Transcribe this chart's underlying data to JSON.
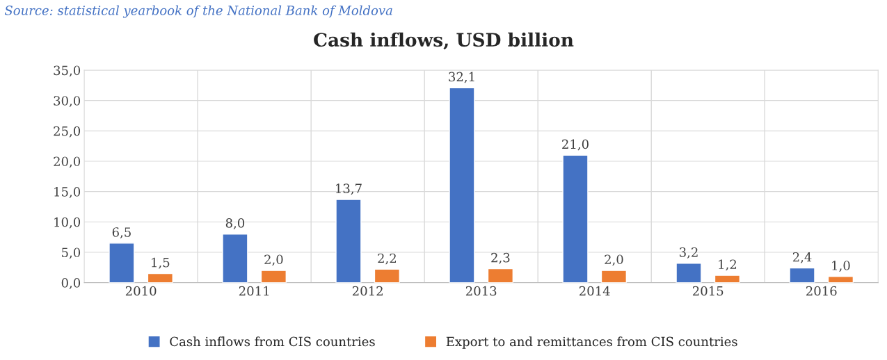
{
  "chart_data": {
    "type": "bar",
    "title": "Cash inflows, USD billion",
    "annotations": [
      "Source: statistical yearbook of the National Bank of Moldova"
    ],
    "categories": [
      "2010",
      "2011",
      "2012",
      "2013",
      "2014",
      "2015",
      "2016"
    ],
    "series": [
      {
        "name": "Cash inflows from CIS countries",
        "color": "#4472c4",
        "values": [
          6.5,
          8.0,
          13.7,
          32.1,
          21.0,
          3.2,
          2.4
        ],
        "value_labels": [
          "6,5",
          "8,0",
          "13,7",
          "32,1",
          "21,0",
          "3,2",
          "2,4"
        ]
      },
      {
        "name": "Export to and remittances from CIS countries",
        "color": "#ed7d31",
        "values": [
          1.5,
          2.0,
          2.2,
          2.3,
          2.0,
          1.2,
          1.0
        ],
        "value_labels": [
          "1,5",
          "2,0",
          "2,2",
          "2,3",
          "2,0",
          "1,2",
          "1,0"
        ]
      }
    ],
    "ylim": [
      0,
      35
    ],
    "yticks": [
      {
        "value": 0,
        "label": "0,0"
      },
      {
        "value": 5,
        "label": "5,0"
      },
      {
        "value": 10,
        "label": "10,0"
      },
      {
        "value": 15,
        "label": "15,0"
      },
      {
        "value": 20,
        "label": "20,0"
      },
      {
        "value": 25,
        "label": "25,0"
      },
      {
        "value": 30,
        "label": "30,0"
      },
      {
        "value": 35,
        "label": "35,0"
      }
    ],
    "grid": true,
    "legend": "bottom"
  }
}
